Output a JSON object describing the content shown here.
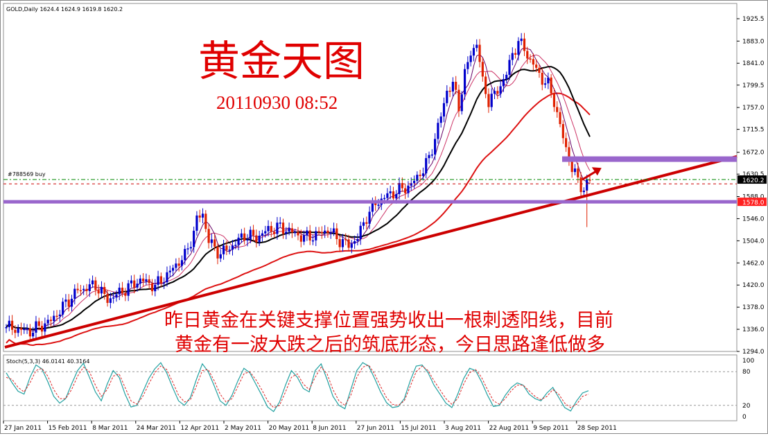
{
  "chart_data": [
    {
      "type": "candlestick",
      "symbol_header": "GOLD,Daily  1624.4 1624.9 1619.8 1620.2",
      "title": "黄金天图",
      "timestamp": "20110930 08:52",
      "annotation": [
        "昨日黄金在关键支撑位置强势收出一根刺透阳线，目前",
        "黄金有一波大跌之后的筑底形态，今日思路逢低做多"
      ],
      "order_label": "#788569 buy",
      "ylim": [
        1294,
        1950
      ],
      "y_ticks": [
        "1925.5",
        "1883.0",
        "1841.0",
        "1799.5",
        "1757.0",
        "1715.5",
        "1672.0",
        "1630.5",
        "1588.0",
        "1546.0",
        "1504.0",
        "1462.0",
        "1420.0",
        "1378.0",
        "1336.0",
        "1294.0"
      ],
      "x_ticks": [
        "27 Jan 2011",
        "15 Feb 2011",
        "8 Mar 2011",
        "24 Mar 2011",
        "12 Apr 2011",
        "2 May 2011",
        "20 May 2011",
        "8 Jun 2011",
        "27 Jun 2011",
        "15 Jul 2011",
        "3 Aug 2011",
        "22 Aug 2011",
        "9 Sep 2011",
        "28 Sep 2011"
      ],
      "current_price_label": "1620.2",
      "support_label": "1578.0",
      "price_path": [
        [
          0,
          1340
        ],
        [
          8,
          1332
        ],
        [
          15,
          1352
        ],
        [
          20,
          1385
        ],
        [
          24,
          1410
        ],
        [
          30,
          1420
        ],
        [
          34,
          1392
        ],
        [
          40,
          1412
        ],
        [
          45,
          1430
        ],
        [
          50,
          1418
        ],
        [
          55,
          1445
        ],
        [
          58,
          1465
        ],
        [
          60,
          1475
        ],
        [
          63,
          1520
        ],
        [
          64,
          1545
        ],
        [
          66,
          1555
        ],
        [
          68,
          1505
        ],
        [
          70,
          1488
        ],
        [
          72,
          1480
        ],
        [
          76,
          1495
        ],
        [
          80,
          1515
        ],
        [
          84,
          1510
        ],
        [
          88,
          1525
        ],
        [
          92,
          1530
        ],
        [
          96,
          1520
        ],
        [
          100,
          1510
        ],
        [
          104,
          1515
        ],
        [
          108,
          1525
        ],
        [
          112,
          1505
        ],
        [
          115,
          1495
        ],
        [
          118,
          1510
        ],
        [
          121,
          1550
        ],
        [
          124,
          1575
        ],
        [
          128,
          1590
        ],
        [
          132,
          1600
        ],
        [
          136,
          1610
        ],
        [
          138,
          1625
        ],
        [
          140,
          1640
        ],
        [
          142,
          1660
        ],
        [
          144,
          1700
        ],
        [
          146,
          1740
        ],
        [
          148,
          1790
        ],
        [
          150,
          1800
        ],
        [
          152,
          1760
        ],
        [
          154,
          1820
        ],
        [
          156,
          1860
        ],
        [
          158,
          1880
        ],
        [
          160,
          1805
        ],
        [
          162,
          1770
        ],
        [
          164,
          1780
        ],
        [
          166,
          1800
        ],
        [
          168,
          1820
        ],
        [
          170,
          1860
        ],
        [
          172,
          1880
        ],
        [
          174,
          1870
        ],
        [
          176,
          1845
        ],
        [
          178,
          1830
        ],
        [
          180,
          1810
        ],
        [
          182,
          1800
        ],
        [
          184,
          1770
        ],
        [
          186,
          1720
        ],
        [
          188,
          1680
        ],
        [
          190,
          1640
        ],
        [
          192,
          1620
        ],
        [
          194,
          1600
        ],
        [
          196,
          1620
        ]
      ],
      "moving_averages": [
        "thin (~5)",
        "pink (~10)",
        "black (~20)",
        "red (~60)"
      ],
      "horizontal_levels": [
        1578.0,
        1659.0
      ],
      "colors": {
        "up": "#0000cc",
        "down": "#e02000",
        "trend": "#cc0000",
        "level": "#9966cc",
        "price_line": "#008800"
      }
    },
    {
      "type": "line",
      "title": "Stoch(5,3,3) 46.0141 40.3164",
      "ylim": [
        0,
        100
      ],
      "y_ticks": [
        "100",
        "80",
        "20",
        "0"
      ],
      "series": [
        {
          "values": [
            78,
            60,
            45,
            40,
            70,
            92,
            85,
            62,
            36,
            24,
            32,
            58,
            82,
            95,
            70,
            44,
            28,
            58,
            82,
            70,
            40,
            17,
            20,
            44,
            68,
            85,
            96,
            78,
            52,
            28,
            20,
            34,
            66,
            94,
            80,
            55,
            28,
            20,
            38,
            64,
            86,
            78,
            58,
            38,
            17,
            9,
            26,
            56,
            82,
            70,
            50,
            44,
            82,
            94,
            66,
            36,
            20,
            14,
            48,
            82,
            96,
            90,
            68,
            44,
            25,
            16,
            18,
            32,
            64,
            90,
            92,
            78,
            56,
            40,
            24,
            16,
            40,
            68,
            86,
            82,
            62,
            38,
            18,
            20,
            38,
            52,
            60,
            56,
            40,
            32,
            28,
            42,
            52,
            34,
            16,
            10,
            28,
            42,
            46
          ]
        },
        {
          "values": [
            70,
            66,
            52,
            44,
            60,
            82,
            86,
            72,
            48,
            32,
            32,
            48,
            72,
            88,
            80,
            56,
            36,
            48,
            72,
            76,
            52,
            28,
            22,
            36,
            58,
            78,
            90,
            84,
            62,
            38,
            26,
            30,
            54,
            82,
            84,
            64,
            40,
            26,
            32,
            54,
            76,
            80,
            66,
            48,
            28,
            16,
            20,
            44,
            70,
            76,
            58,
            48,
            70,
            88,
            76,
            48,
            28,
            20,
            38,
            70,
            88,
            92,
            76,
            54,
            34,
            22,
            20,
            28,
            54,
            80,
            90,
            82,
            64,
            48,
            32,
            22,
            32,
            58,
            78,
            84,
            70,
            48,
            28,
            22,
            32,
            46,
            56,
            56,
            46,
            36,
            30,
            36,
            48,
            40,
            24,
            16,
            22,
            36,
            40
          ]
        }
      ]
    }
  ]
}
